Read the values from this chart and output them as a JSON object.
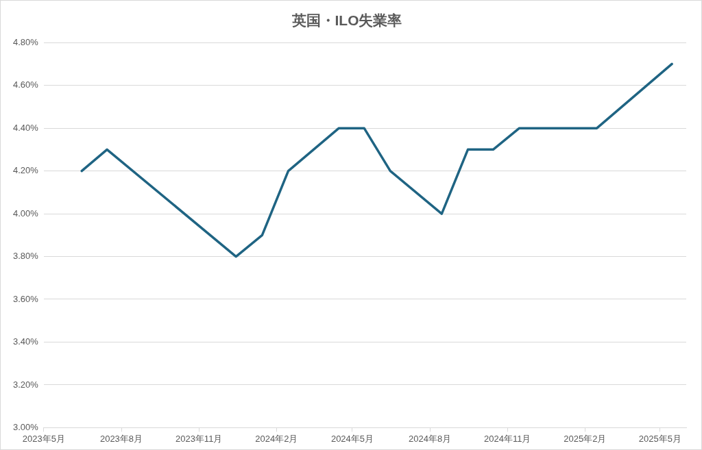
{
  "chart_data": {
    "type": "line",
    "title": "英国・ILO失業率",
    "x": [
      "2023-06-15",
      "2023-07-15",
      "2023-12-15",
      "2024-01-15",
      "2024-02-15",
      "2024-04-15",
      "2024-05-15",
      "2024-06-15",
      "2024-08-15",
      "2024-09-15",
      "2024-10-15",
      "2024-11-15",
      "2025-02-15",
      "2025-05-15"
    ],
    "series": [
      {
        "color": "#1f6483",
        "values": [
          4.2,
          4.3,
          3.8,
          3.9,
          4.2,
          4.4,
          4.4,
          4.2,
          4.0,
          4.3,
          4.3,
          4.4,
          4.4,
          4.7
        ]
      }
    ],
    "xlim": [
      "2023-05-01",
      "2025-06-01"
    ],
    "xticks": [
      {
        "value": "2023-05-01",
        "label": "2023年5月"
      },
      {
        "value": "2023-08-01",
        "label": "2023年8月"
      },
      {
        "value": "2023-11-01",
        "label": "2023年11月"
      },
      {
        "value": "2024-02-01",
        "label": "2024年2月"
      },
      {
        "value": "2024-05-01",
        "label": "2024年5月"
      },
      {
        "value": "2024-08-01",
        "label": "2024年8月"
      },
      {
        "value": "2024-11-01",
        "label": "2024年11月"
      },
      {
        "value": "2025-02-01",
        "label": "2025年2月"
      },
      {
        "value": "2025-05-01",
        "label": "2025年5月"
      }
    ],
    "ylim": [
      3.0,
      4.8
    ],
    "yticks": [
      {
        "value": 3.0,
        "label": "3.00%"
      },
      {
        "value": 3.2,
        "label": "3.20%"
      },
      {
        "value": 3.4,
        "label": "3.40%"
      },
      {
        "value": 3.6,
        "label": "3.60%"
      },
      {
        "value": 3.8,
        "label": "3.80%"
      },
      {
        "value": 4.0,
        "label": "4.00%"
      },
      {
        "value": 4.2,
        "label": "4.20%"
      },
      {
        "value": 4.4,
        "label": "4.40%"
      },
      {
        "value": 4.6,
        "label": "4.60%"
      },
      {
        "value": 4.8,
        "label": "4.80%"
      }
    ],
    "grid": "y",
    "legend": false,
    "marker": "none",
    "line_style": "solid"
  }
}
